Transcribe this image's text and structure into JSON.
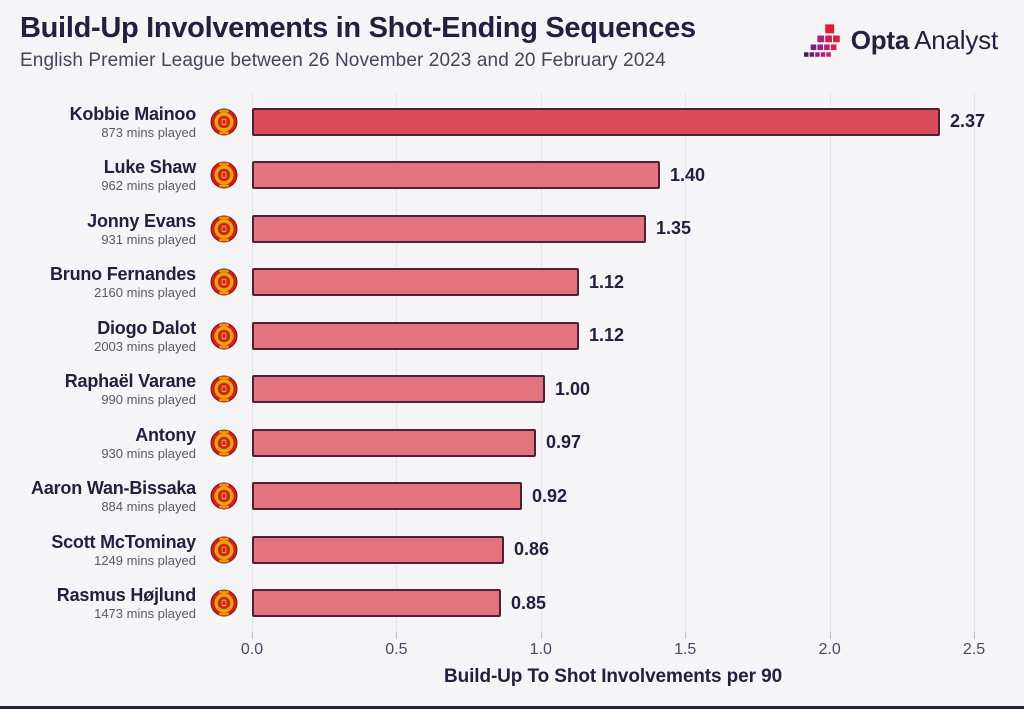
{
  "header": {
    "title": "Build-Up Involvements in Shot-Ending Sequences",
    "subtitle": "English Premier League between 26 November 2023 and 20 February 2024",
    "logo_bold": "Opta",
    "logo_regular": "Analyst"
  },
  "chart_data": {
    "type": "bar",
    "orientation": "horizontal",
    "title": "Build-Up Involvements in Shot-Ending Sequences",
    "subtitle": "English Premier League between 26 November 2023 and 20 February 2024",
    "xlabel": "Build-Up To Shot Involvements per 90",
    "xlim": [
      0,
      2.5
    ],
    "xticks": [
      "0.0",
      "0.5",
      "1.0",
      "1.5",
      "2.0",
      "2.5"
    ],
    "grid": true,
    "legend": "none",
    "club": "Manchester United",
    "players": [
      {
        "name": "Kobbie Mainoo",
        "mins": "873 mins played",
        "value": 2.37,
        "label": "2.37",
        "highlight": true
      },
      {
        "name": "Luke Shaw",
        "mins": "962 mins played",
        "value": 1.4,
        "label": "1.40",
        "highlight": false
      },
      {
        "name": "Jonny Evans",
        "mins": "931 mins played",
        "value": 1.35,
        "label": "1.35",
        "highlight": false
      },
      {
        "name": "Bruno Fernandes",
        "mins": "2160 mins played",
        "value": 1.12,
        "label": "1.12",
        "highlight": false
      },
      {
        "name": "Diogo Dalot",
        "mins": "2003 mins played",
        "value": 1.12,
        "label": "1.12",
        "highlight": false
      },
      {
        "name": "Raphaël Varane",
        "mins": "990 mins played",
        "value": 1.0,
        "label": "1.00",
        "highlight": false
      },
      {
        "name": "Antony",
        "mins": "930 mins played",
        "value": 0.97,
        "label": "0.97",
        "highlight": false
      },
      {
        "name": "Aaron Wan-Bissaka",
        "mins": "884 mins played",
        "value": 0.92,
        "label": "0.92",
        "highlight": false
      },
      {
        "name": "Scott McTominay",
        "mins": "1249 mins played",
        "value": 0.86,
        "label": "0.86",
        "highlight": false
      },
      {
        "name": "Rasmus Højlund",
        "mins": "1473 mins played",
        "value": 0.85,
        "label": "0.85",
        "highlight": false
      }
    ],
    "colors": {
      "background": "#f5f4f6",
      "highlight_bar": "#d84b59",
      "bar": "#e3737f",
      "bar_border": "#4f2138",
      "text": "#241e3f"
    }
  }
}
